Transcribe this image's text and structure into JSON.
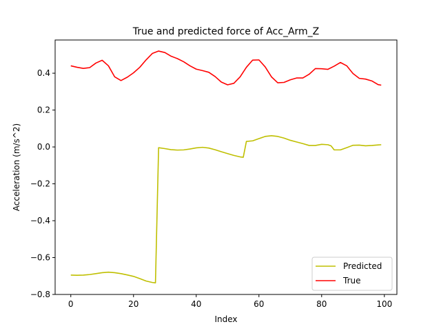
{
  "chart_data": {
    "type": "line",
    "title": "True and predicted force of Acc_Arm_Z",
    "xlabel": "Index",
    "ylabel": "Acceleration (m/s^2)",
    "xlim": [
      -5,
      104
    ],
    "ylim": [
      -0.8,
      0.58
    ],
    "xticks": [
      0,
      20,
      40,
      60,
      80,
      100
    ],
    "yticks": [
      -0.8,
      -0.6,
      -0.4,
      -0.2,
      0.0,
      0.2,
      0.4
    ],
    "ytick_labels": [
      "−0.8",
      "−0.6",
      "−0.4",
      "−0.2",
      "0.0",
      "0.2",
      "0.4"
    ],
    "grid": false,
    "legend_position": "lower right",
    "series": [
      {
        "name": "Predicted",
        "color": "#bfbf00",
        "x": [
          0,
          2,
          4,
          6,
          8,
          10,
          12,
          14,
          16,
          18,
          20,
          22,
          24,
          26,
          27,
          28,
          30,
          32,
          34,
          36,
          38,
          40,
          42,
          44,
          46,
          48,
          50,
          52,
          54,
          55,
          56,
          58,
          60,
          62,
          64,
          66,
          68,
          70,
          72,
          74,
          76,
          78,
          80,
          82,
          83,
          84,
          86,
          88,
          90,
          92,
          94,
          96,
          98,
          99
        ],
        "y": [
          -0.695,
          -0.696,
          -0.695,
          -0.692,
          -0.687,
          -0.682,
          -0.679,
          -0.682,
          -0.687,
          -0.694,
          -0.702,
          -0.714,
          -0.727,
          -0.735,
          -0.737,
          -0.004,
          -0.009,
          -0.015,
          -0.017,
          -0.016,
          -0.011,
          -0.005,
          -0.002,
          -0.006,
          -0.015,
          -0.026,
          -0.036,
          -0.046,
          -0.054,
          -0.056,
          0.03,
          0.033,
          0.045,
          0.057,
          0.061,
          0.057,
          0.048,
          0.036,
          0.027,
          0.018,
          0.008,
          0.008,
          0.014,
          0.012,
          0.006,
          -0.016,
          -0.016,
          -0.004,
          0.009,
          0.01,
          0.006,
          0.008,
          0.011,
          0.012
        ]
      },
      {
        "name": "True",
        "color": "#ff0000",
        "x": [
          0,
          2,
          4,
          6,
          8,
          10,
          12,
          14,
          16,
          18,
          20,
          22,
          24,
          26,
          28,
          30,
          32,
          34,
          36,
          38,
          40,
          42,
          44,
          46,
          48,
          50,
          52,
          54,
          56,
          58,
          60,
          62,
          64,
          66,
          68,
          70,
          72,
          74,
          76,
          78,
          80,
          82,
          84,
          86,
          88,
          90,
          92,
          94,
          96,
          98,
          99
        ],
        "y": [
          0.44,
          0.432,
          0.426,
          0.43,
          0.455,
          0.47,
          0.44,
          0.38,
          0.36,
          0.378,
          0.402,
          0.432,
          0.472,
          0.507,
          0.52,
          0.512,
          0.492,
          0.479,
          0.462,
          0.44,
          0.422,
          0.414,
          0.405,
          0.382,
          0.352,
          0.337,
          0.345,
          0.38,
          0.432,
          0.471,
          0.472,
          0.434,
          0.38,
          0.348,
          0.35,
          0.364,
          0.374,
          0.374,
          0.394,
          0.425,
          0.424,
          0.421,
          0.438,
          0.458,
          0.44,
          0.398,
          0.372,
          0.368,
          0.358,
          0.338,
          0.335
        ]
      }
    ]
  }
}
